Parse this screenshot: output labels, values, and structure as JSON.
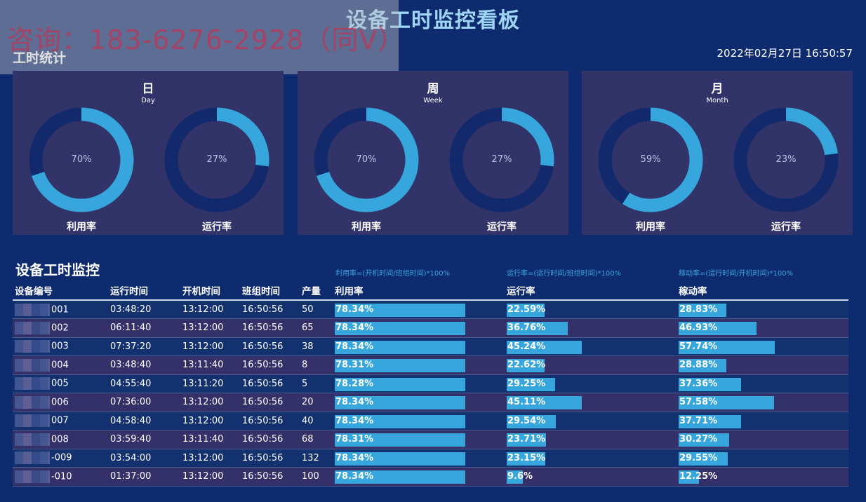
{
  "header": {
    "title": "设备工时监控看板",
    "datetime": "2022年02月27日 16:50:57",
    "section_title": "工时统计",
    "watermark": "咨询：183-6276-2928（同V）"
  },
  "panels": [
    {
      "title": "日",
      "sub": "Day",
      "donuts": [
        {
          "label": "利用率",
          "value": 70,
          "pct_text": "70%"
        },
        {
          "label": "运行率",
          "value": 27,
          "pct_text": "27%"
        }
      ]
    },
    {
      "title": "周",
      "sub": "Week",
      "donuts": [
        {
          "label": "利用率",
          "value": 70,
          "pct_text": "70%"
        },
        {
          "label": "运行率",
          "value": 27,
          "pct_text": "27%"
        }
      ]
    },
    {
      "title": "月",
      "sub": "Month",
      "donuts": [
        {
          "label": "利用率",
          "value": 59,
          "pct_text": "59%"
        },
        {
          "label": "运行率",
          "value": 23,
          "pct_text": "23%"
        }
      ]
    }
  ],
  "monitor": {
    "title": "设备工时监控",
    "formulas": {
      "util": "利用率=(开机时间/班组时间)*100%",
      "run": "运行率=(运行时间/班组时间)*100%",
      "move": "稼动率=(运行时间/开机时间)*100%"
    },
    "columns": [
      "设备编号",
      "运行时间",
      "开机时间",
      "班组时间",
      "产量",
      "利用率",
      "运行率",
      "稼动率"
    ],
    "rows": [
      {
        "id": "001",
        "run_time": "03:48:20",
        "on_time": "13:12:00",
        "shift_time": "16:50:56",
        "output": "50",
        "util": "78.34%",
        "util_v": 78.34,
        "run": "22.59%",
        "run_v": 22.59,
        "move": "28.83%",
        "move_v": 28.83
      },
      {
        "id": "002",
        "run_time": "06:11:40",
        "on_time": "13:12:00",
        "shift_time": "16:50:56",
        "output": "65",
        "util": "78.34%",
        "util_v": 78.34,
        "run": "36.76%",
        "run_v": 36.76,
        "move": "46.93%",
        "move_v": 46.93
      },
      {
        "id": "003",
        "run_time": "07:37:20",
        "on_time": "13:12:00",
        "shift_time": "16:50:56",
        "output": "38",
        "util": "78.34%",
        "util_v": 78.34,
        "run": "45.24%",
        "run_v": 45.24,
        "move": "57.74%",
        "move_v": 57.74
      },
      {
        "id": "004",
        "run_time": "03:48:40",
        "on_time": "13:11:40",
        "shift_time": "16:50:56",
        "output": "8",
        "util": "78.31%",
        "util_v": 78.31,
        "run": "22.62%",
        "run_v": 22.62,
        "move": "28.88%",
        "move_v": 28.88
      },
      {
        "id": "005",
        "run_time": "04:55:40",
        "on_time": "13:11:20",
        "shift_time": "16:50:56",
        "output": "5",
        "util": "78.28%",
        "util_v": 78.28,
        "run": "29.25%",
        "run_v": 29.25,
        "move": "37.36%",
        "move_v": 37.36
      },
      {
        "id": "006",
        "run_time": "07:36:00",
        "on_time": "13:12:00",
        "shift_time": "16:50:56",
        "output": "20",
        "util": "78.34%",
        "util_v": 78.34,
        "run": "45.11%",
        "run_v": 45.11,
        "move": "57.58%",
        "move_v": 57.58
      },
      {
        "id": "007",
        "run_time": "04:58:40",
        "on_time": "13:12:00",
        "shift_time": "16:50:56",
        "output": "40",
        "util": "78.34%",
        "util_v": 78.34,
        "run": "29.54%",
        "run_v": 29.54,
        "move": "37.71%",
        "move_v": 37.71
      },
      {
        "id": "008",
        "run_time": "03:59:40",
        "on_time": "13:11:40",
        "shift_time": "16:50:56",
        "output": "68",
        "util": "78.31%",
        "util_v": 78.31,
        "run": "23.71%",
        "run_v": 23.71,
        "move": "30.27%",
        "move_v": 30.27
      },
      {
        "id": "-009",
        "run_time": "03:54:00",
        "on_time": "13:12:00",
        "shift_time": "16:50:56",
        "output": "132",
        "util": "78.34%",
        "util_v": 78.34,
        "run": "23.15%",
        "run_v": 23.15,
        "move": "29.55%",
        "move_v": 29.55
      },
      {
        "id": "-010",
        "run_time": "01:37:00",
        "on_time": "13:12:00",
        "shift_time": "16:50:56",
        "output": "100",
        "util": "78.34%",
        "util_v": 78.34,
        "run": "9.6%",
        "run_v": 9.6,
        "move": "12.25%",
        "move_v": 12.25
      }
    ]
  },
  "colors": {
    "background": "#0e2b6f",
    "panel": "#323368",
    "donut_track": "#12296b",
    "donut_fill": "#36a6dc",
    "bar": "#36a6dc",
    "title": "#9fd6f5"
  }
}
